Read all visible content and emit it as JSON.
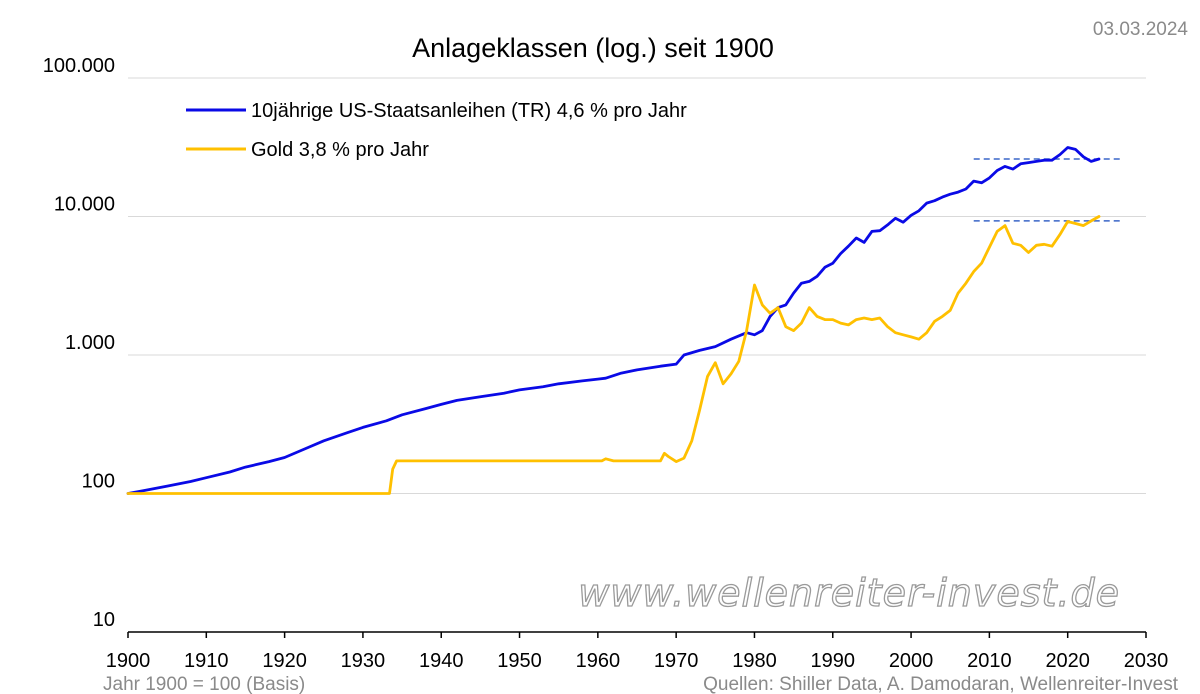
{
  "header": {
    "title": "Anlageklassen (log.) seit 1900",
    "date": "03.03.2024"
  },
  "footer": {
    "left": "Jahr 1900 = 100 (Basis)",
    "right": "Quellen: Shiller Data, A. Damodaran, Wellenreiter-Invest"
  },
  "watermark": "www.wellenreiter-invest.de",
  "colors": {
    "bonds": "#0a0ae6",
    "gold": "#ffc000",
    "reference_line": "#3a66c8",
    "grid": "#d9d9d9",
    "axis": "#000000"
  },
  "chart_data": {
    "type": "line",
    "title": "Anlageklassen (log.) seit 1900",
    "xlabel": "",
    "ylabel": "",
    "x_scale": "linear",
    "y_scale": "log",
    "xlim": [
      1900,
      2030
    ],
    "ylim": [
      10,
      100000
    ],
    "x_ticks": [
      1900,
      1910,
      1920,
      1930,
      1940,
      1950,
      1960,
      1970,
      1980,
      1990,
      2000,
      2010,
      2020,
      2030
    ],
    "x_tick_labels": [
      "1900",
      "1910",
      "1920",
      "1930",
      "1940",
      "1950",
      "1960",
      "1970",
      "1980",
      "1990",
      "2000",
      "2010",
      "2020",
      "2030"
    ],
    "y_ticks": [
      10,
      100,
      1000,
      10000,
      100000
    ],
    "y_tick_labels": [
      "10",
      "100",
      "1.000",
      "10.000",
      "100.000"
    ],
    "grid": "horizontal",
    "legend_position": "top-left",
    "series": [
      {
        "name": "10jährige US-Staatsanleihen (TR) 4,6 % pro Jahr",
        "color": "#0a0ae6",
        "points": [
          [
            1900,
            100
          ],
          [
            1902,
            105
          ],
          [
            1905,
            113
          ],
          [
            1908,
            122
          ],
          [
            1910,
            130
          ],
          [
            1913,
            143
          ],
          [
            1915,
            155
          ],
          [
            1918,
            170
          ],
          [
            1920,
            182
          ],
          [
            1923,
            215
          ],
          [
            1925,
            240
          ],
          [
            1928,
            275
          ],
          [
            1930,
            300
          ],
          [
            1933,
            335
          ],
          [
            1935,
            370
          ],
          [
            1938,
            410
          ],
          [
            1940,
            440
          ],
          [
            1942,
            470
          ],
          [
            1945,
            500
          ],
          [
            1948,
            530
          ],
          [
            1950,
            560
          ],
          [
            1953,
            590
          ],
          [
            1955,
            620
          ],
          [
            1958,
            650
          ],
          [
            1960,
            670
          ],
          [
            1961,
            680
          ],
          [
            1963,
            740
          ],
          [
            1965,
            780
          ],
          [
            1968,
            830
          ],
          [
            1970,
            860
          ],
          [
            1971,
            1000
          ],
          [
            1973,
            1080
          ],
          [
            1975,
            1150
          ],
          [
            1977,
            1300
          ],
          [
            1979,
            1450
          ],
          [
            1980,
            1400
          ],
          [
            1981,
            1500
          ],
          [
            1982,
            1900
          ],
          [
            1983,
            2200
          ],
          [
            1984,
            2300
          ],
          [
            1985,
            2800
          ],
          [
            1986,
            3300
          ],
          [
            1987,
            3400
          ],
          [
            1988,
            3700
          ],
          [
            1989,
            4300
          ],
          [
            1990,
            4600
          ],
          [
            1991,
            5400
          ],
          [
            1992,
            6100
          ],
          [
            1993,
            7000
          ],
          [
            1994,
            6500
          ],
          [
            1995,
            7800
          ],
          [
            1996,
            7900
          ],
          [
            1997,
            8700
          ],
          [
            1998,
            9700
          ],
          [
            1999,
            9100
          ],
          [
            2000,
            10200
          ],
          [
            2001,
            11000
          ],
          [
            2002,
            12500
          ],
          [
            2003,
            13000
          ],
          [
            2004,
            13800
          ],
          [
            2005,
            14500
          ],
          [
            2006,
            15000
          ],
          [
            2007,
            15800
          ],
          [
            2008,
            18000
          ],
          [
            2009,
            17500
          ],
          [
            2010,
            19000
          ],
          [
            2011,
            21500
          ],
          [
            2012,
            23000
          ],
          [
            2013,
            22000
          ],
          [
            2014,
            24000
          ],
          [
            2015,
            24500
          ],
          [
            2016,
            25000
          ],
          [
            2017,
            25500
          ],
          [
            2018,
            25500
          ],
          [
            2019,
            28000
          ],
          [
            2020,
            31500
          ],
          [
            2021,
            30500
          ],
          [
            2022,
            27000
          ],
          [
            2023,
            25000
          ],
          [
            2024,
            26000
          ]
        ]
      },
      {
        "name": "Gold 3,8 % pro Jahr",
        "color": "#ffc000",
        "points": [
          [
            1900,
            100
          ],
          [
            1933.4,
            100
          ],
          [
            1933.8,
            150
          ],
          [
            1934.3,
            172
          ],
          [
            1960.5,
            172
          ],
          [
            1961,
            178
          ],
          [
            1962,
            172
          ],
          [
            1968,
            172
          ],
          [
            1968.5,
            195
          ],
          [
            1969,
            185
          ],
          [
            1970,
            170
          ],
          [
            1971,
            180
          ],
          [
            1972,
            240
          ],
          [
            1973,
            400
          ],
          [
            1974,
            700
          ],
          [
            1975,
            880
          ],
          [
            1976,
            620
          ],
          [
            1977,
            730
          ],
          [
            1978,
            900
          ],
          [
            1979,
            1500
          ],
          [
            1980,
            3200
          ],
          [
            1981,
            2300
          ],
          [
            1982,
            2000
          ],
          [
            1983,
            2200
          ],
          [
            1984,
            1600
          ],
          [
            1985,
            1500
          ],
          [
            1986,
            1700
          ],
          [
            1987,
            2200
          ],
          [
            1988,
            1900
          ],
          [
            1989,
            1800
          ],
          [
            1990,
            1800
          ],
          [
            1991,
            1700
          ],
          [
            1992,
            1650
          ],
          [
            1993,
            1800
          ],
          [
            1994,
            1850
          ],
          [
            1995,
            1800
          ],
          [
            1996,
            1850
          ],
          [
            1997,
            1600
          ],
          [
            1998,
            1450
          ],
          [
            1999,
            1400
          ],
          [
            2000,
            1350
          ],
          [
            2001,
            1300
          ],
          [
            2002,
            1450
          ],
          [
            2003,
            1750
          ],
          [
            2004,
            1900
          ],
          [
            2005,
            2100
          ],
          [
            2006,
            2800
          ],
          [
            2007,
            3300
          ],
          [
            2008,
            4000
          ],
          [
            2009,
            4600
          ],
          [
            2010,
            6000
          ],
          [
            2011,
            7800
          ],
          [
            2012,
            8600
          ],
          [
            2013,
            6400
          ],
          [
            2014,
            6200
          ],
          [
            2015,
            5500
          ],
          [
            2016,
            6200
          ],
          [
            2017,
            6300
          ],
          [
            2018,
            6100
          ],
          [
            2019,
            7400
          ],
          [
            2020,
            9200
          ],
          [
            2021,
            8900
          ],
          [
            2022,
            8600
          ],
          [
            2023,
            9300
          ],
          [
            2024,
            10000
          ]
        ]
      }
    ],
    "reference_lines": [
      {
        "y": 26000,
        "x_start": 2008,
        "x_end": 2027,
        "style": "dashed"
      },
      {
        "y": 9300,
        "x_start": 2008,
        "x_end": 2027,
        "style": "dashed"
      }
    ]
  }
}
